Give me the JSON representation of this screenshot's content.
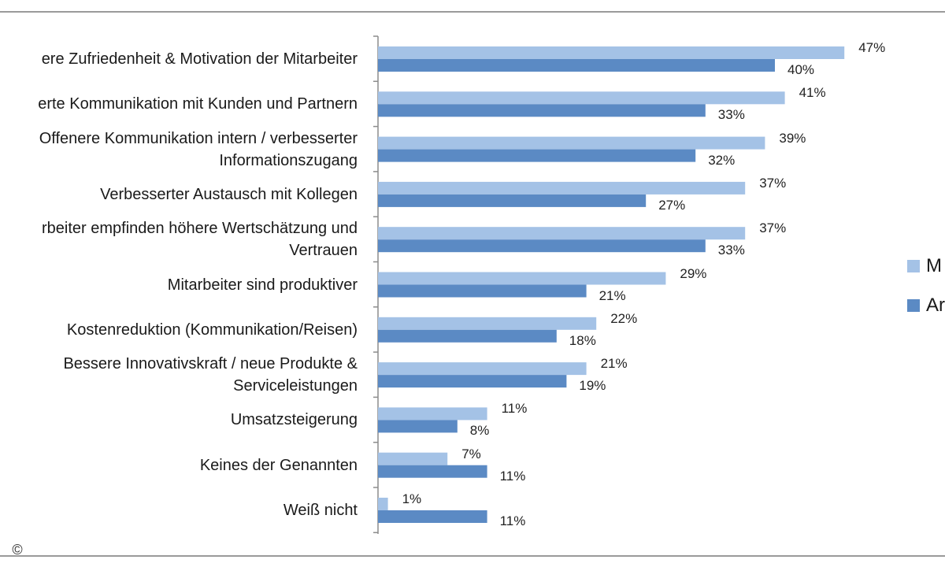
{
  "chart_data": {
    "type": "bar",
    "orientation": "horizontal",
    "title": "",
    "xlabel": "",
    "ylabel": "",
    "xlim": [
      0,
      50
    ],
    "grid": false,
    "legend_position": "right",
    "categories": [
      "ere Zufriedenheit & Motivation der Mitarbeiter",
      "erte Kommunikation mit Kunden und Partnern",
      "Offenere Kommunikation intern / verbesserter\nInformationszugang",
      "Verbesserter Austausch mit Kollegen",
      "rbeiter empfinden höhere Wertschätzung und\nVertrauen",
      "Mitarbeiter sind produktiver",
      "Kostenreduktion (Kommunikation/Reisen)",
      "Bessere Innovativskraft / neue Produkte &\nServiceleistungen",
      "Umsatzsteigerung",
      "Keines der Genannten",
      "Weiß nicht"
    ],
    "series": [
      {
        "name": "M",
        "color": "#a4c2e6",
        "values": [
          47,
          41,
          39,
          37,
          37,
          29,
          22,
          21,
          11,
          7,
          1
        ],
        "labels": [
          "47%",
          "41%",
          "39%",
          "37%",
          "37%",
          "29%",
          "22%",
          "21%",
          "11%",
          "7%",
          "1%"
        ]
      },
      {
        "name": "Ar",
        "color": "#5b8ac4",
        "values": [
          40,
          33,
          32,
          27,
          33,
          21,
          18,
          19,
          8,
          11,
          11
        ],
        "labels": [
          "40%",
          "33%",
          "32%",
          "27%",
          "33%",
          "21%",
          "18%",
          "19%",
          "8%",
          "11%",
          "11%"
        ]
      }
    ]
  },
  "copyright_symbol": "©"
}
